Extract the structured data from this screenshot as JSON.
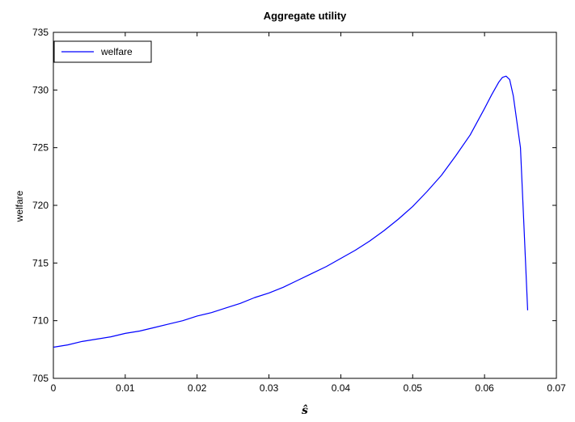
{
  "chart_data": {
    "type": "line",
    "title": "Aggregate utility",
    "xlabel": "ŝ",
    "ylabel": "welfare",
    "xlim": [
      0,
      0.07
    ],
    "ylim": [
      705,
      735
    ],
    "xticks": [
      0,
      0.01,
      0.02,
      0.03,
      0.04,
      0.05,
      0.06,
      0.07
    ],
    "xtick_labels": [
      "0",
      "0.01",
      "0.02",
      "0.03",
      "0.04",
      "0.05",
      "0.06",
      "0.07"
    ],
    "yticks": [
      705,
      710,
      715,
      720,
      725,
      730,
      735
    ],
    "ytick_labels": [
      "705",
      "710",
      "715",
      "720",
      "725",
      "730",
      "735"
    ],
    "grid": false,
    "legend": {
      "position": "top-left"
    },
    "series": [
      {
        "name": "welfare",
        "color": "#0000ff",
        "x": [
          0,
          0.002,
          0.004,
          0.006,
          0.008,
          0.01,
          0.012,
          0.014,
          0.016,
          0.018,
          0.02,
          0.022,
          0.024,
          0.026,
          0.028,
          0.03,
          0.032,
          0.034,
          0.036,
          0.038,
          0.04,
          0.042,
          0.044,
          0.046,
          0.048,
          0.05,
          0.052,
          0.054,
          0.056,
          0.058,
          0.06,
          0.061,
          0.062,
          0.0625,
          0.063,
          0.0635,
          0.064,
          0.065,
          0.0655,
          0.066
        ],
        "y": [
          707.7,
          707.9,
          708.2,
          708.4,
          708.6,
          708.9,
          709.1,
          709.4,
          709.7,
          710.0,
          710.4,
          710.7,
          711.1,
          711.5,
          712.0,
          712.4,
          712.9,
          713.5,
          714.1,
          714.7,
          715.4,
          716.1,
          716.9,
          717.8,
          718.8,
          719.9,
          721.2,
          722.6,
          724.3,
          726.1,
          728.4,
          729.6,
          730.7,
          731.1,
          731.2,
          730.9,
          729.5,
          725.0,
          718.0,
          710.9
        ]
      }
    ]
  }
}
